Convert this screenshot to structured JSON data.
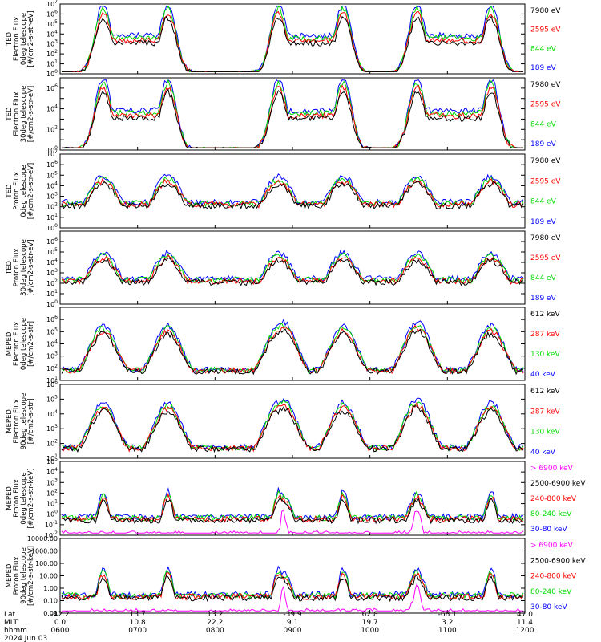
{
  "chart_data": {
    "type": "line",
    "date_label": "2024 Jun 03",
    "x_axis": {
      "row_labels": [
        "Lat",
        "MLT",
        "hhmm"
      ],
      "ticks": [
        {
          "lat": "-42.2",
          "mlt": "0.0",
          "hhmm": "0600"
        },
        {
          "lat": "13.7",
          "mlt": "10.8",
          "hhmm": "0700"
        },
        {
          "lat": "13.2",
          "mlt": "22.2",
          "hhmm": "0800"
        },
        {
          "lat": "-39.9",
          "mlt": "9.1",
          "hhmm": "0900"
        },
        {
          "lat": "62.8",
          "mlt": "19.7",
          "hhmm": "1000"
        },
        {
          "lat": "-68.1",
          "mlt": "3.2",
          "hhmm": "1100"
        },
        {
          "lat": "47.0",
          "mlt": "11.4",
          "hhmm": "1200"
        }
      ]
    },
    "panels": [
      {
        "ylabel": [
          "TED",
          "Electron Flux",
          "0deg telescope",
          "[#/cm2-s-str-eV]"
        ],
        "scale": "log",
        "ylim": [
          1,
          10000000
        ],
        "ytick_labels": [
          "10^0",
          "10^1",
          "10^2",
          "10^3",
          "10^4",
          "10^5",
          "10^6",
          "10^7"
        ],
        "series": [
          {
            "name": "7980 eV",
            "color": "#000000"
          },
          {
            "name": "2595 eV",
            "color": "#ff0000"
          },
          {
            "name": "844 eV",
            "color": "#00dd00"
          },
          {
            "name": "189 eV",
            "color": "#0000ff"
          }
        ]
      },
      {
        "ylabel": [
          "TED",
          "Electron Flux",
          "30deg telescope",
          "[#/cm2-s-str-eV]"
        ],
        "scale": "log",
        "ylim": [
          1,
          10000000
        ],
        "ytick_labels": [
          "10^0",
          "",
          "10^2",
          "",
          "10^4",
          "",
          "10^6",
          ""
        ],
        "series": [
          {
            "name": "7980 eV",
            "color": "#000000"
          },
          {
            "name": "2595 eV",
            "color": "#ff0000"
          },
          {
            "name": "844 eV",
            "color": "#00dd00"
          },
          {
            "name": "189 eV",
            "color": "#0000ff"
          }
        ]
      },
      {
        "ylabel": [
          "TED",
          "Proton Flux",
          "0deg telescope",
          "[#/cm2-s-str-eV]"
        ],
        "scale": "log",
        "ylim": [
          1,
          10000000
        ],
        "ytick_labels": [
          "10^0",
          "10^1",
          "10^2",
          "10^3",
          "10^4",
          "10^5",
          "10^6",
          "10^7"
        ],
        "series": [
          {
            "name": "7980 eV",
            "color": "#000000"
          },
          {
            "name": "2595 eV",
            "color": "#ff0000"
          },
          {
            "name": "844 eV",
            "color": "#00dd00"
          },
          {
            "name": "189 eV",
            "color": "#0000ff"
          }
        ]
      },
      {
        "ylabel": [
          "TED",
          "Proton Flux",
          "30deg telescope",
          "[#/cm2-s-str-eV]"
        ],
        "scale": "log",
        "ylim": [
          1,
          10000000
        ],
        "ytick_labels": [
          "10^0",
          "10^1",
          "10^2",
          "10^3",
          "10^4",
          "10^5",
          "10^6",
          ""
        ],
        "series": [
          {
            "name": "7980 eV",
            "color": "#000000"
          },
          {
            "name": "2595 eV",
            "color": "#ff0000"
          },
          {
            "name": "844 eV",
            "color": "#00dd00"
          },
          {
            "name": "189 eV",
            "color": "#0000ff"
          }
        ]
      },
      {
        "ylabel": [
          "MEPED",
          "Electron Flux",
          "0deg telescope",
          "[#/cm2-s-str]"
        ],
        "scale": "log",
        "ylim": [
          10,
          10000000
        ],
        "ytick_labels": [
          "10^1",
          "10^2",
          "10^3",
          "10^4",
          "10^5",
          "10^6",
          ""
        ],
        "series": [
          {
            "name": "612 keV",
            "color": "#000000"
          },
          {
            "name": "287 keV",
            "color": "#ff0000"
          },
          {
            "name": "130 keV",
            "color": "#00dd00"
          },
          {
            "name": "40 keV",
            "color": "#0000ff"
          }
        ]
      },
      {
        "ylabel": [
          "MEPED",
          "Electron Flux",
          "90deg telescope",
          "[#/cm2-s-str]"
        ],
        "scale": "log",
        "ylim": [
          10,
          1000000
        ],
        "ytick_labels": [
          "10^1",
          "10^2",
          "10^3",
          "10^4",
          "10^5",
          "10^6"
        ],
        "series": [
          {
            "name": "612 keV",
            "color": "#000000"
          },
          {
            "name": "287 keV",
            "color": "#ff0000"
          },
          {
            "name": "130 keV",
            "color": "#00dd00"
          },
          {
            "name": "40 keV",
            "color": "#0000ff"
          }
        ]
      },
      {
        "ylabel": [
          "MEPED",
          "Proton Flux",
          "0deg telescope",
          "[#/cm2-s-str-keV]"
        ],
        "scale": "log",
        "ylim": [
          0.01,
          100000
        ],
        "ytick_labels": [
          "10^-2",
          "10^-1",
          "10^0",
          "10^1",
          "10^2",
          "10^3",
          "10^4",
          "10^5"
        ],
        "series": [
          {
            "name": "> 6900 keV",
            "color": "#ff00ff"
          },
          {
            "name": "2500-6900 keV",
            "color": "#000000"
          },
          {
            "name": "240-800 keV",
            "color": "#ff0000"
          },
          {
            "name": "80-240 keV",
            "color": "#00dd00"
          },
          {
            "name": "30-80 keV",
            "color": "#0000ff"
          }
        ]
      },
      {
        "ylabel": [
          "MEPED",
          "Proton Flux",
          "90deg telescope",
          "[#/cm2-s-str-keV]"
        ],
        "scale": "log",
        "ylim": [
          0.01,
          10000
        ],
        "ytick_labels": [
          "0.01",
          "0.10",
          "1.00",
          "10.00",
          "100.00",
          "1000.00",
          "10000.00"
        ],
        "series": [
          {
            "name": "> 6900 keV",
            "color": "#ff00ff"
          },
          {
            "name": "2500-6900 keV",
            "color": "#000000"
          },
          {
            "name": "240-800 keV",
            "color": "#ff0000"
          },
          {
            "name": "80-240 keV",
            "color": "#00dd00"
          },
          {
            "name": "30-80 keV",
            "color": "#0000ff"
          }
        ]
      }
    ]
  }
}
